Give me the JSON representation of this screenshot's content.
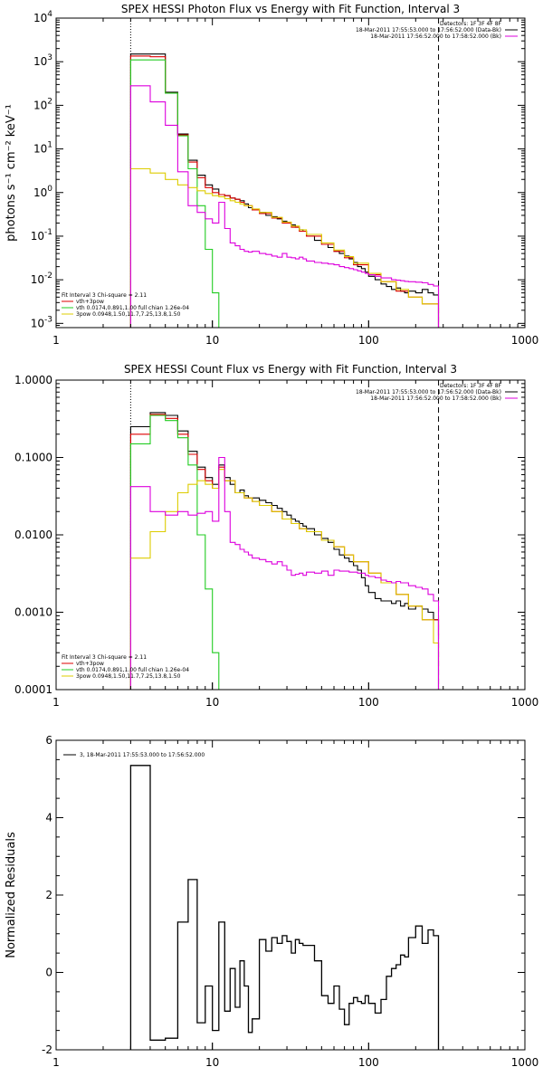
{
  "chart_data": [
    {
      "type": "line",
      "title": "SPEX HESSI Photon Flux vs Energy with Fit Function, Interval 3",
      "xlabel": "",
      "ylabel": "photons s⁻¹ cm⁻² keV⁻¹",
      "xscale": "log",
      "yscale": "log",
      "xlim": [
        1,
        1000
      ],
      "ylim": [
        0.0008,
        10000
      ],
      "xticks": [
        1,
        10,
        100,
        1000
      ],
      "xtick_labels": [
        "1",
        "10",
        "100",
        "1000"
      ],
      "yticks": [
        0.001,
        0.01,
        0.1,
        1,
        10,
        100,
        1000,
        10000
      ],
      "ytick_labels": [
        [
          "10",
          "-3"
        ],
        [
          "10",
          "-2"
        ],
        [
          "10",
          "-1"
        ],
        [
          "10",
          "0"
        ],
        [
          "10",
          "1"
        ],
        [
          "10",
          "2"
        ],
        [
          "10",
          "3"
        ],
        [
          "10",
          "4"
        ]
      ],
      "vlines": [
        {
          "x": 3.0,
          "style": "dotted"
        },
        {
          "x": 280,
          "style": "dashed"
        }
      ],
      "legend_topright": [
        "Detectors: 1F 3F 4F 8F",
        "18-Mar-2011 17:55:53.000 to 17:56:52.000 (Data-Bk)",
        "18-Mar-2011 17:56:52.000 to 17:58:52.000 (Bk)"
      ],
      "legend_bottomleft": [
        "Fit Interval 3   Chi-square = 2.11",
        "vth+3pow",
        "vth 0.0174,0.891,1.00  full chian 1.26e-04",
        "3pow 0.0948,1.50,11.7,7.25,13.8,1.50"
      ],
      "series": [
        {
          "name": "Data-Bk",
          "color": "#000000",
          "edges": [
            3,
            4,
            5,
            6,
            7,
            8,
            9,
            10,
            11,
            12,
            13,
            14,
            15,
            16,
            17,
            18,
            20,
            22,
            24,
            26,
            28,
            30,
            32,
            34,
            36,
            38,
            40,
            45,
            50,
            55,
            60,
            65,
            70,
            75,
            80,
            85,
            90,
            95,
            100,
            110,
            120,
            130,
            140,
            150,
            160,
            170,
            180,
            200,
            220,
            240,
            260,
            280
          ],
          "values": [
            1500,
            1500,
            200,
            22,
            5.5,
            2.5,
            1.5,
            1.2,
            0.9,
            0.85,
            0.75,
            0.7,
            0.65,
            0.55,
            0.45,
            0.4,
            0.35,
            0.3,
            0.28,
            0.25,
            0.22,
            0.2,
            0.18,
            0.16,
            0.14,
            0.13,
            0.1,
            0.08,
            0.065,
            0.055,
            0.045,
            0.04,
            0.035,
            0.03,
            0.025,
            0.02,
            0.018,
            0.015,
            0.012,
            0.01,
            0.008,
            0.007,
            0.006,
            0.0065,
            0.0055,
            0.005,
            0.0055,
            0.005,
            0.006,
            0.005,
            0.0045
          ]
        },
        {
          "name": "vth+3pow",
          "color": "#dd0000",
          "edges": [
            3,
            4,
            5,
            6,
            7,
            8,
            9,
            10,
            11,
            12,
            13,
            14,
            15,
            16,
            18,
            20,
            24,
            28,
            32,
            36,
            40,
            50,
            60,
            70,
            80,
            100,
            120,
            150,
            180,
            220,
            280
          ],
          "values": [
            1350,
            1300,
            190,
            21,
            5,
            2.2,
            1.3,
            1.0,
            0.9,
            0.85,
            0.75,
            0.7,
            0.6,
            0.5,
            0.4,
            0.33,
            0.26,
            0.2,
            0.16,
            0.13,
            0.1,
            0.065,
            0.045,
            0.032,
            0.022,
            0.013,
            0.009,
            0.0055,
            0.004,
            0.0028
          ]
        },
        {
          "name": "vth",
          "color": "#22cc22",
          "edges": [
            3,
            4,
            5,
            6,
            7,
            8,
            9,
            10,
            11
          ],
          "values": [
            1100,
            1100,
            190,
            20,
            3.5,
            0.5,
            0.05,
            0.005,
            0.0008
          ]
        },
        {
          "name": "3pow",
          "color": "#ddcc00",
          "edges": [
            3,
            4,
            5,
            6,
            7,
            8,
            9,
            10,
            11,
            12,
            13,
            14,
            15,
            16,
            18,
            20,
            24,
            28,
            32,
            36,
            40,
            50,
            60,
            70,
            80,
            100,
            120,
            150,
            180,
            220,
            280
          ],
          "values": [
            3.5,
            2.8,
            2.0,
            1.5,
            1.3,
            1.1,
            0.95,
            0.85,
            0.8,
            0.72,
            0.65,
            0.6,
            0.55,
            0.5,
            0.42,
            0.35,
            0.27,
            0.21,
            0.17,
            0.14,
            0.11,
            0.07,
            0.048,
            0.034,
            0.024,
            0.014,
            0.009,
            0.006,
            0.004,
            0.0028,
            0.0017
          ]
        },
        {
          "name": "Bk",
          "color": "#dd00dd",
          "edges": [
            3,
            4,
            5,
            6,
            7,
            8,
            9,
            10,
            11,
            12,
            13,
            14,
            15,
            16,
            17,
            18,
            20,
            22,
            24,
            26,
            28,
            30,
            32,
            34,
            36,
            38,
            40,
            45,
            50,
            55,
            60,
            65,
            70,
            75,
            80,
            85,
            90,
            95,
            100,
            110,
            120,
            130,
            140,
            150,
            160,
            170,
            180,
            200,
            220,
            240,
            260,
            280
          ],
          "values": [
            280,
            120,
            35,
            3,
            0.5,
            0.35,
            0.25,
            0.2,
            0.6,
            0.15,
            0.07,
            0.06,
            0.05,
            0.045,
            0.043,
            0.045,
            0.04,
            0.038,
            0.035,
            0.033,
            0.04,
            0.033,
            0.032,
            0.03,
            0.033,
            0.03,
            0.027,
            0.025,
            0.024,
            0.023,
            0.022,
            0.02,
            0.019,
            0.018,
            0.017,
            0.016,
            0.015,
            0.014,
            0.013,
            0.012,
            0.011,
            0.011,
            0.01,
            0.0098,
            0.0095,
            0.0092,
            0.009,
            0.0088,
            0.0085,
            0.0078,
            0.0072
          ]
        }
      ]
    },
    {
      "type": "line",
      "title": "SPEX HESSI Count Flux vs Energy with Fit Function, Interval 3",
      "xlabel": "",
      "ylabel": "",
      "xscale": "log",
      "yscale": "log",
      "xlim": [
        1,
        1000
      ],
      "ylim": [
        0.0001,
        1.0
      ],
      "xticks": [
        1,
        10,
        100,
        1000
      ],
      "xtick_labels": [
        "1",
        "10",
        "100",
        "1000"
      ],
      "yticks": [
        0.0001,
        0.001,
        0.01,
        0.1,
        1.0
      ],
      "ytick_labels": [
        "0.0001",
        "0.0010",
        "0.0100",
        "0.1000",
        "1.0000"
      ],
      "vlines": [
        {
          "x": 3.0,
          "style": "dotted"
        },
        {
          "x": 280,
          "style": "dashed"
        }
      ],
      "legend_topright": [
        "Detectors: 1F 3F 4F 8F",
        "18-Mar-2011 17:55:53.000 to 17:56:52.000 (Data-Bk)",
        "18-Mar-2011 17:56:52.000 to 17:58:52.000 (Bk)"
      ],
      "legend_bottomleft": [
        "Fit Interval 3   Chi-square = 2.11",
        "vth+3pow",
        "vth 0.0174,0.891,1.00  full chian 1.26e-04",
        "3pow 0.0948,1.50,11.7,7.25,13.8,1.50"
      ],
      "series": [
        {
          "name": "Data-Bk",
          "color": "#000000",
          "edges": [
            3,
            4,
            5,
            6,
            7,
            8,
            9,
            10,
            11,
            12,
            13,
            14,
            15,
            16,
            17,
            18,
            20,
            22,
            24,
            26,
            28,
            30,
            32,
            34,
            36,
            38,
            40,
            45,
            50,
            55,
            60,
            65,
            70,
            75,
            80,
            85,
            90,
            95,
            100,
            110,
            120,
            130,
            140,
            150,
            160,
            170,
            180,
            200,
            220,
            240,
            260,
            280
          ],
          "values": [
            0.25,
            0.38,
            0.35,
            0.22,
            0.12,
            0.075,
            0.055,
            0.045,
            0.08,
            0.055,
            0.045,
            0.035,
            0.038,
            0.032,
            0.03,
            0.03,
            0.028,
            0.026,
            0.024,
            0.022,
            0.02,
            0.018,
            0.016,
            0.015,
            0.014,
            0.013,
            0.012,
            0.01,
            0.009,
            0.008,
            0.0065,
            0.0055,
            0.005,
            0.0045,
            0.004,
            0.0035,
            0.0028,
            0.0022,
            0.0018,
            0.0015,
            0.0014,
            0.0014,
            0.0013,
            0.0014,
            0.0012,
            0.0013,
            0.0011,
            0.0012,
            0.0011,
            0.001,
            0.0008
          ]
        },
        {
          "name": "vth+3pow",
          "color": "#dd0000",
          "edges": [
            3,
            4,
            5,
            6,
            7,
            8,
            9,
            10,
            11,
            12,
            14,
            16,
            18,
            20,
            24,
            28,
            32,
            36,
            40,
            50,
            60,
            70,
            80,
            100,
            120,
            150,
            180,
            220,
            280
          ],
          "values": [
            0.2,
            0.36,
            0.32,
            0.2,
            0.11,
            0.07,
            0.05,
            0.04,
            0.075,
            0.05,
            0.035,
            0.03,
            0.027,
            0.024,
            0.02,
            0.016,
            0.014,
            0.012,
            0.011,
            0.0085,
            0.007,
            0.0055,
            0.0045,
            0.0032,
            0.0024,
            0.0017,
            0.0012,
            0.0008,
            0.0005
          ]
        },
        {
          "name": "vth",
          "color": "#22cc22",
          "edges": [
            3,
            4,
            5,
            6,
            7,
            8,
            9,
            10,
            11
          ],
          "values": [
            0.15,
            0.35,
            0.3,
            0.18,
            0.08,
            0.01,
            0.002,
            0.0003,
            0.0001
          ]
        },
        {
          "name": "3pow",
          "color": "#ddcc00",
          "edges": [
            3,
            4,
            5,
            6,
            7,
            8,
            9,
            10,
            11,
            12,
            14,
            16,
            18,
            20,
            24,
            28,
            32,
            36,
            40,
            50,
            60,
            70,
            80,
            100,
            120,
            150,
            180,
            220,
            260,
            280
          ],
          "values": [
            0.005,
            0.011,
            0.02,
            0.035,
            0.045,
            0.05,
            0.045,
            0.04,
            0.07,
            0.05,
            0.035,
            0.03,
            0.027,
            0.024,
            0.02,
            0.016,
            0.014,
            0.012,
            0.011,
            0.0085,
            0.007,
            0.0055,
            0.0045,
            0.0032,
            0.0024,
            0.0017,
            0.0012,
            0.0008,
            0.0004,
            0.0002
          ]
        },
        {
          "name": "Bk",
          "color": "#dd00dd",
          "edges": [
            3,
            4,
            5,
            6,
            7,
            8,
            9,
            10,
            11,
            12,
            13,
            14,
            15,
            16,
            17,
            18,
            20,
            22,
            24,
            26,
            28,
            30,
            32,
            34,
            36,
            38,
            40,
            45,
            50,
            55,
            60,
            65,
            70,
            75,
            80,
            85,
            90,
            95,
            100,
            110,
            120,
            130,
            140,
            150,
            160,
            170,
            180,
            200,
            220,
            240,
            260,
            280
          ],
          "values": [
            0.042,
            0.02,
            0.018,
            0.02,
            0.018,
            0.019,
            0.02,
            0.015,
            0.1,
            0.02,
            0.008,
            0.0075,
            0.0065,
            0.006,
            0.0055,
            0.005,
            0.0048,
            0.0045,
            0.0042,
            0.0045,
            0.004,
            0.0035,
            0.003,
            0.0031,
            0.0032,
            0.003,
            0.0033,
            0.0032,
            0.0034,
            0.003,
            0.0035,
            0.0034,
            0.0034,
            0.0033,
            0.0033,
            0.0032,
            0.0032,
            0.003,
            0.0029,
            0.0028,
            0.0026,
            0.0025,
            0.0024,
            0.0025,
            0.0024,
            0.0024,
            0.0022,
            0.0021,
            0.002,
            0.0017,
            0.0014
          ]
        }
      ]
    },
    {
      "type": "line",
      "title": "",
      "xlabel": "",
      "ylabel": "Normalized Residuals",
      "xscale": "log",
      "yscale": "linear",
      "xlim": [
        1,
        1000
      ],
      "ylim": [
        -2,
        6
      ],
      "xticks": [
        1,
        10,
        100,
        1000
      ],
      "xtick_labels": [
        "1",
        "10",
        "100",
        "1000"
      ],
      "yticks": [
        -2,
        0,
        2,
        4,
        6
      ],
      "ytick_labels": [
        "-2",
        "0",
        "2",
        "4",
        "6"
      ],
      "legend_topleft": [
        "3, 18-Mar-2011 17:55:53.000 to 17:56:52.000"
      ],
      "series": [
        {
          "name": "3, 18-Mar-2011 17:55:53.000 to 17:56:52.000",
          "color": "#000000",
          "edges": [
            3,
            4,
            5,
            6,
            7,
            8,
            9,
            10,
            11,
            12,
            13,
            14,
            15,
            16,
            17,
            18,
            20,
            22,
            24,
            26,
            28,
            30,
            32,
            34,
            36,
            38,
            40,
            45,
            50,
            55,
            60,
            65,
            70,
            75,
            80,
            85,
            90,
            95,
            100,
            110,
            120,
            130,
            140,
            150,
            160,
            170,
            180,
            200,
            220,
            240,
            260,
            280
          ],
          "values": [
            5.35,
            -1.75,
            -1.7,
            1.3,
            2.4,
            -1.3,
            -0.35,
            -1.5,
            1.3,
            -1.0,
            0.1,
            -0.9,
            0.3,
            -0.35,
            -1.55,
            -1.2,
            0.85,
            0.55,
            0.9,
            0.75,
            0.95,
            0.8,
            0.5,
            0.85,
            0.75,
            0.7,
            0.7,
            0.3,
            -0.6,
            -0.8,
            -0.35,
            -0.95,
            -1.35,
            -0.8,
            -0.65,
            -0.75,
            -0.8,
            -0.6,
            -0.8,
            -1.05,
            -0.7,
            -0.1,
            0.1,
            0.2,
            0.45,
            0.4,
            0.9,
            1.2,
            0.75,
            1.1,
            0.95
          ]
        }
      ]
    }
  ]
}
